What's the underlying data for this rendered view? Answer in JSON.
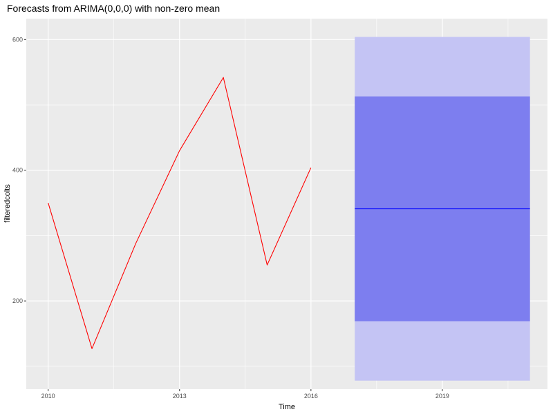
{
  "chart_data": {
    "type": "line",
    "title": "Forecasts from ARIMA(0,0,0) with non-zero mean",
    "xlabel": "Time",
    "ylabel": "filteredcolts",
    "xlim": [
      2009.5,
      2021.4
    ],
    "ylim": [
      65,
      632
    ],
    "x_ticks": [
      2010,
      2013,
      2016,
      2019
    ],
    "y_ticks": [
      200,
      400,
      600
    ],
    "grid": true,
    "legend": "none",
    "series": [
      {
        "role": "observed",
        "color": "#ff0000",
        "x": [
          2010,
          2011,
          2012,
          2013,
          2014,
          2015,
          2016
        ],
        "values": [
          350,
          127,
          288,
          430,
          542,
          255,
          404
        ]
      }
    ],
    "forecast": {
      "x_start": 2017,
      "x_end": 2021,
      "mean": 341,
      "interval_80": [
        169,
        513
      ],
      "interval_95": [
        78,
        604
      ],
      "color_mean": "#0000ff",
      "color_80": "#7d7eef",
      "color_95": "#c4c4f4"
    },
    "panel_color": "#ebebeb",
    "grid_color": "#ffffff"
  }
}
